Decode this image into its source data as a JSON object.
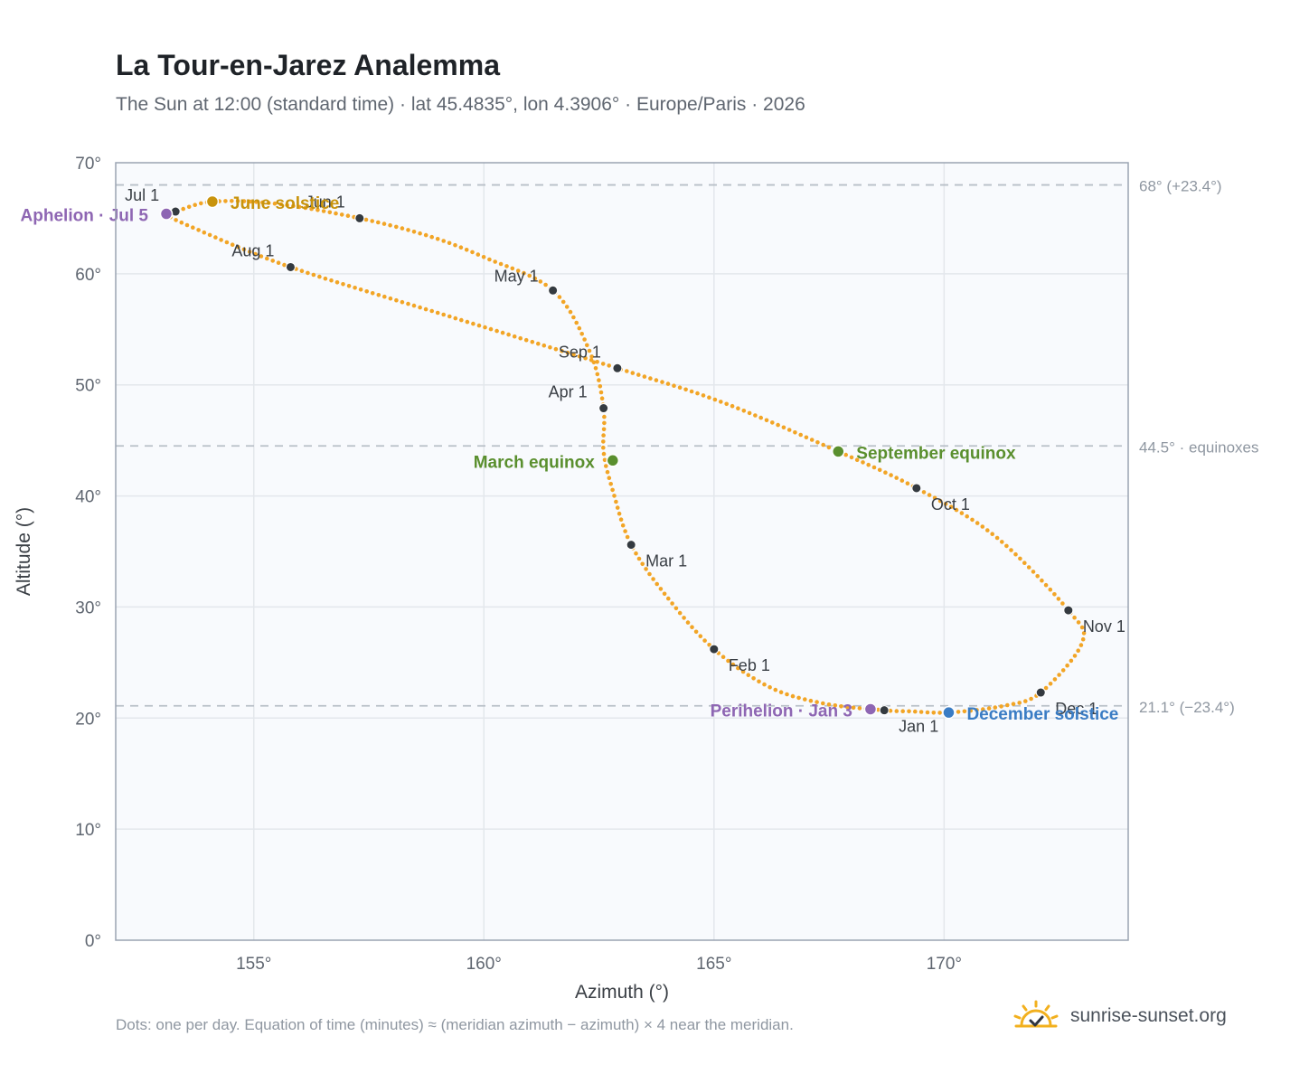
{
  "title": "La Tour-en-Jarez Analemma",
  "subtitle": "The Sun at 12:00 (standard time) · lat 45.4835°, lon 4.3906° · Europe/Paris · 2026",
  "footnote": "Dots: one per day. Equation of time (minutes) ≈ (meridian azimuth − azimuth) × 4 near the meridian.",
  "brand": {
    "text": "sunrise-sunset.org",
    "icon": "sun-logo-icon"
  },
  "colors": {
    "curve": "#f2a526",
    "month_dot": "#343a40",
    "solstice_june": "#c8930c",
    "solstice_december": "#3a7cc4",
    "equinox": "#5a8f2e",
    "apsis": "#8e66b3",
    "plot_bg": "#f8fafd",
    "grid": "#e3e7ec",
    "ref_line": "#b9c0c8"
  },
  "chart_data": {
    "type": "scatter",
    "title": "La Tour-en-Jarez Analemma",
    "xlabel": "Azimuth (°)",
    "ylabel": "Altitude (°)",
    "xlim": [
      152,
      174
    ],
    "ylim": [
      0,
      70
    ],
    "x_ticks": [
      "155°",
      "160°",
      "165°",
      "170°"
    ],
    "x_tick_values": [
      155,
      160,
      165,
      170
    ],
    "y_ticks": [
      "0°",
      "10°",
      "20°",
      "30°",
      "40°",
      "50°",
      "60°",
      "70°"
    ],
    "y_tick_values": [
      0,
      10,
      20,
      30,
      40,
      50,
      60,
      70
    ],
    "grid": true,
    "reference_lines": [
      {
        "y": 68.0,
        "label": "68° (+23.4°)"
      },
      {
        "y": 44.5,
        "label": "44.5° · equinoxes"
      },
      {
        "y": 21.1,
        "label": "21.1° (−23.4°)"
      }
    ],
    "month_points": [
      {
        "label": "Jan 1",
        "az": 168.7,
        "alt": 20.7
      },
      {
        "label": "Feb 1",
        "az": 165.0,
        "alt": 26.2
      },
      {
        "label": "Mar 1",
        "az": 163.2,
        "alt": 35.6
      },
      {
        "label": "Apr 1",
        "az": 162.6,
        "alt": 47.9
      },
      {
        "label": "May 1",
        "az": 161.5,
        "alt": 58.5
      },
      {
        "label": "Jun 1",
        "az": 157.3,
        "alt": 65.0
      },
      {
        "label": "Jul 1",
        "az": 153.3,
        "alt": 65.6
      },
      {
        "label": "Aug 1",
        "az": 155.8,
        "alt": 60.6
      },
      {
        "label": "Sep 1",
        "az": 162.9,
        "alt": 51.5
      },
      {
        "label": "Oct 1",
        "az": 169.4,
        "alt": 40.7
      },
      {
        "label": "Nov 1",
        "az": 172.7,
        "alt": 29.7
      },
      {
        "label": "Dec 1",
        "az": 172.1,
        "alt": 22.3
      }
    ],
    "events": [
      {
        "label": "June solstice",
        "az": 154.1,
        "alt": 66.5,
        "kind": "solstice_june"
      },
      {
        "label": "December solstice",
        "az": 170.1,
        "alt": 20.5,
        "kind": "solstice_december"
      },
      {
        "label": "March equinox",
        "az": 162.8,
        "alt": 43.2,
        "kind": "equinox"
      },
      {
        "label": "September equinox",
        "az": 167.7,
        "alt": 44.0,
        "kind": "equinox"
      },
      {
        "label": "Aphelion · Jul 5",
        "az": 153.1,
        "alt": 65.4,
        "kind": "apsis"
      },
      {
        "label": "Perihelion · Jan 3",
        "az": 168.4,
        "alt": 20.8,
        "kind": "apsis"
      }
    ],
    "daily_path": [
      [
        168.7,
        20.7
      ],
      [
        167.4,
        21.3
      ],
      [
        166.2,
        22.8
      ],
      [
        165.0,
        26.2
      ],
      [
        164.0,
        30.8
      ],
      [
        163.2,
        35.6
      ],
      [
        162.8,
        40.5
      ],
      [
        162.6,
        44.0
      ],
      [
        162.6,
        47.9
      ],
      [
        162.3,
        53.0
      ],
      [
        161.5,
        58.5
      ],
      [
        160.0,
        61.5
      ],
      [
        158.8,
        63.4
      ],
      [
        157.3,
        65.0
      ],
      [
        155.5,
        66.3
      ],
      [
        154.1,
        66.5
      ],
      [
        153.3,
        65.6
      ],
      [
        153.1,
        65.4
      ],
      [
        153.6,
        64.3
      ],
      [
        155.8,
        60.6
      ],
      [
        159.3,
        56.1
      ],
      [
        162.9,
        51.5
      ],
      [
        165.2,
        48.4
      ],
      [
        167.7,
        44.0
      ],
      [
        169.4,
        40.7
      ],
      [
        171.1,
        36.4
      ],
      [
        172.7,
        29.7
      ],
      [
        173.0,
        26.8
      ],
      [
        172.1,
        22.3
      ],
      [
        171.3,
        21.1
      ],
      [
        170.1,
        20.5
      ],
      [
        169.3,
        20.6
      ],
      [
        168.7,
        20.7
      ]
    ]
  }
}
